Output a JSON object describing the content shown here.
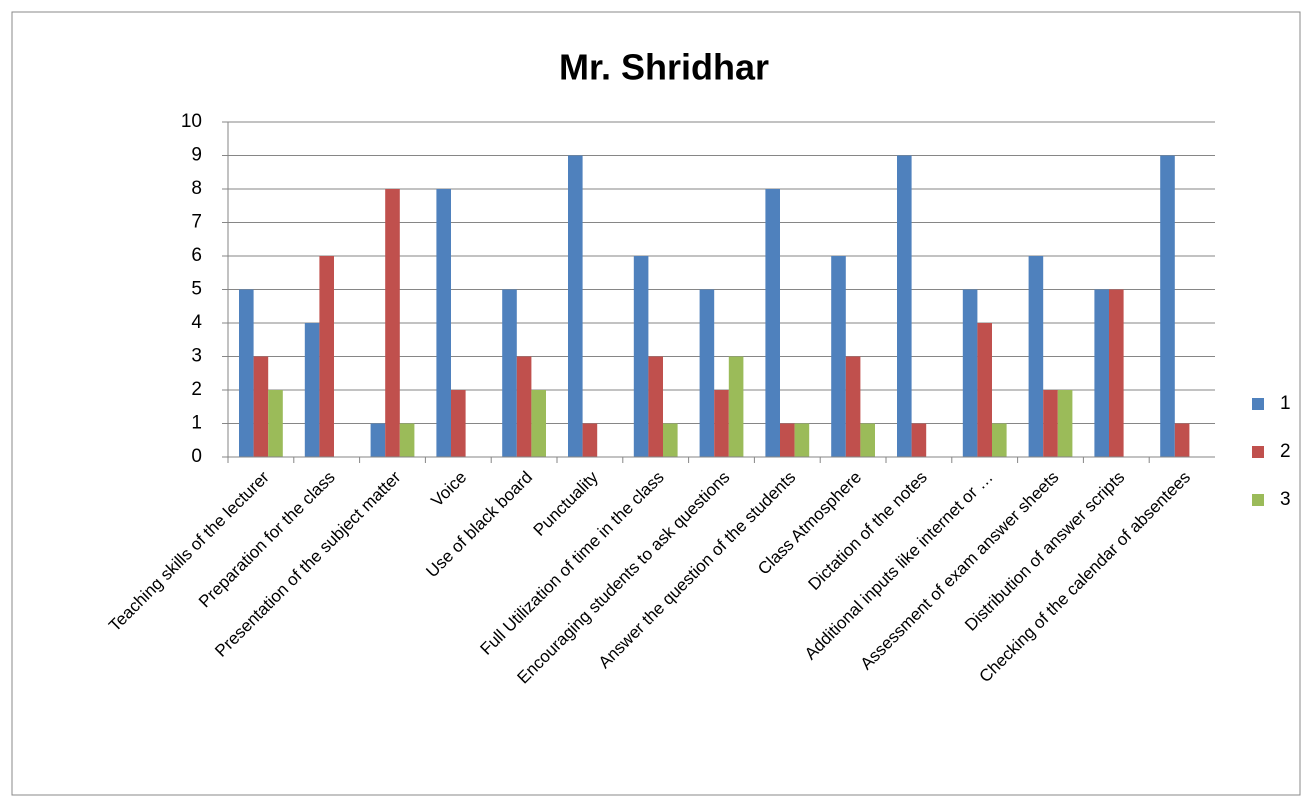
{
  "chart_data": {
    "type": "bar",
    "title": "Mr. Shridhar",
    "categories": [
      "Teaching skills of the lecturer",
      "Preparation for the class",
      "Presentation of the subject matter",
      "Voice",
      "Use of black board",
      "Punctuality",
      "Full Utilization of time in the class",
      "Encouraging students to ask questions",
      "Answer the question of the students",
      "Class Atmosphere",
      "Dictation of the notes",
      "Additional inputs like internet or …",
      "Assessment of exam answer sheets",
      "Distribution of answer scripts",
      "Checking of the calendar of absentees"
    ],
    "series": [
      {
        "name": "1",
        "color": "#4f81bd",
        "values": [
          5,
          4,
          1,
          8,
          5,
          9,
          6,
          5,
          8,
          6,
          9,
          5,
          6,
          5,
          9
        ]
      },
      {
        "name": "2",
        "color": "#c0504d",
        "values": [
          3,
          6,
          8,
          2,
          3,
          1,
          3,
          2,
          1,
          3,
          1,
          4,
          2,
          5,
          1
        ]
      },
      {
        "name": "3",
        "color": "#9bbb59",
        "values": [
          2,
          0,
          1,
          0,
          2,
          0,
          1,
          3,
          1,
          1,
          0,
          1,
          2,
          0,
          0
        ]
      }
    ],
    "ylim": [
      0,
      10
    ],
    "yticks": [
      0,
      1,
      2,
      3,
      4,
      5,
      6,
      7,
      8,
      9,
      10
    ],
    "grid": true,
    "legend": "right"
  }
}
